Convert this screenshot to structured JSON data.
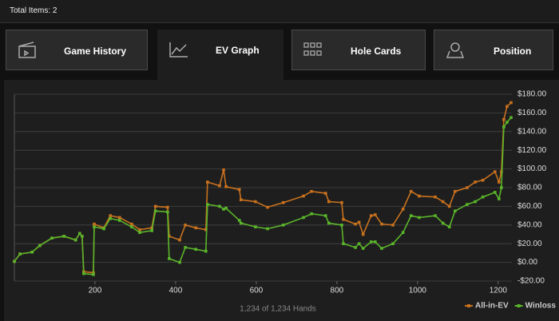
{
  "header": {
    "total_items": "Total Items: 2"
  },
  "tabs": [
    "Game History",
    "EV Graph",
    "Hole Cards",
    "Position"
  ],
  "chart_data": {
    "type": "line",
    "xlabel": "1,234 of 1,234 Hands",
    "x": [
      0,
      14,
      44,
      63,
      93,
      123,
      152,
      162,
      168,
      172,
      196,
      198,
      222,
      238,
      261,
      291,
      311,
      341,
      350,
      380,
      384,
      410,
      424,
      450,
      475,
      479,
      509,
      519,
      525,
      558,
      562,
      598,
      628,
      667,
      717,
      737,
      772,
      780,
      812,
      816,
      846,
      855,
      865,
      885,
      895,
      911,
      939,
      964,
      984,
      1004,
      1044,
      1063,
      1079,
      1093,
      1123,
      1143,
      1162,
      1192,
      1202,
      1208,
      1214,
      1222,
      1232
    ],
    "series": [
      {
        "name": "All-in-EV",
        "color": "#c8711e",
        "values": [
          1,
          9,
          11,
          18,
          26,
          28,
          24,
          31,
          28,
          -10,
          -11,
          41,
          37,
          50,
          48,
          41,
          35,
          37,
          60,
          59,
          28,
          24,
          40,
          37,
          35,
          86,
          82,
          99,
          81,
          78,
          67,
          65,
          59,
          64,
          71,
          76,
          74,
          65,
          64,
          46,
          41,
          43,
          30,
          50,
          51,
          41,
          40,
          57,
          76,
          71,
          70,
          65,
          60,
          76,
          80,
          86,
          88,
          97,
          86,
          97,
          153,
          167,
          171
        ]
      },
      {
        "name": "Winloss",
        "color": "#5ab52a",
        "values": [
          1,
          9,
          11,
          18,
          26,
          28,
          24,
          31,
          28,
          -12,
          -13,
          38,
          36,
          47,
          45,
          38,
          32,
          34,
          55,
          54,
          4,
          0,
          16,
          14,
          12,
          62,
          60,
          57,
          58,
          45,
          42,
          38,
          36,
          40,
          48,
          52,
          50,
          42,
          40,
          20,
          16,
          20,
          15,
          22,
          22,
          15,
          20,
          32,
          50,
          48,
          50,
          42,
          38,
          55,
          62,
          65,
          70,
          75,
          68,
          80,
          145,
          150,
          155
        ]
      }
    ],
    "xlim": [
      0,
      1234
    ],
    "xticks": [
      200,
      400,
      600,
      800,
      1000,
      1200
    ],
    "ylim": [
      -20,
      180
    ],
    "yticks": [
      {
        "value": -20,
        "label": "-$20.00"
      },
      {
        "value": 0,
        "label": "$0.00"
      },
      {
        "value": 20,
        "label": "$20.00"
      },
      {
        "value": 40,
        "label": "$40.00"
      },
      {
        "value": 60,
        "label": "$60.00"
      },
      {
        "value": 80,
        "label": "$80.00"
      },
      {
        "value": 100,
        "label": "$100.00"
      },
      {
        "value": 120,
        "label": "$120.00"
      },
      {
        "value": 140,
        "label": "$140.00"
      },
      {
        "value": 160,
        "label": "$160.00"
      },
      {
        "value": 180,
        "label": "$180.00"
      }
    ],
    "grid": true
  }
}
